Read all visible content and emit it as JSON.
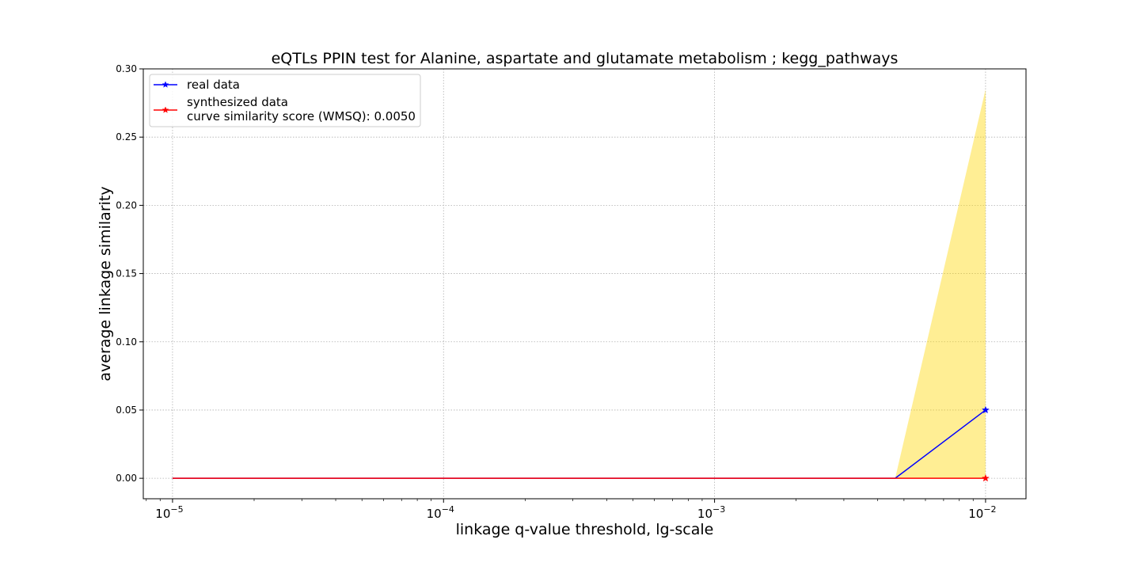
{
  "chart_data": {
    "type": "line",
    "title": "eQTLs PPIN test for Alanine, aspartate and glutamate metabolism ; kegg_pathways",
    "xlabel": "linkage q-value threshold, lg-scale",
    "ylabel": "average linkage similarity",
    "x_scale": "log10",
    "xlim": [
      7.8e-06,
      0.0141
    ],
    "ylim": [
      -0.015,
      0.3
    ],
    "x_ticks": [
      {
        "value": 1e-05,
        "base": "10",
        "exp": "−5"
      },
      {
        "value": 0.0001,
        "base": "10",
        "exp": "−4"
      },
      {
        "value": 0.001,
        "base": "10",
        "exp": "−3"
      },
      {
        "value": 0.01,
        "base": "10",
        "exp": "−2"
      }
    ],
    "y_ticks": [
      {
        "value": 0.0,
        "label": "0.00"
      },
      {
        "value": 0.05,
        "label": "0.05"
      },
      {
        "value": 0.1,
        "label": "0.10"
      },
      {
        "value": 0.15,
        "label": "0.15"
      },
      {
        "value": 0.2,
        "label": "0.20"
      },
      {
        "value": 0.25,
        "label": "0.25"
      },
      {
        "value": 0.3,
        "label": "0.30"
      }
    ],
    "grid": true,
    "legend_position": "top-left",
    "series": [
      {
        "name": "real data",
        "color": "#0000ff",
        "marker": "star",
        "x": [
          1e-05,
          0.00464,
          0.01
        ],
        "y": [
          0.0,
          0.0,
          0.05
        ],
        "marker_x": [
          0.01
        ],
        "marker_y": [
          0.05
        ]
      },
      {
        "name": "synthesized data",
        "color": "#ff0000",
        "marker": "star",
        "x": [
          1e-05,
          0.00464,
          0.01
        ],
        "y": [
          0.0,
          0.0,
          0.0
        ],
        "marker_x": [
          0.01
        ],
        "marker_y": [
          0.0
        ]
      }
    ],
    "band": {
      "color": "#ffd700",
      "opacity": 0.42,
      "x": [
        0.00464,
        0.01
      ],
      "lower": [
        0.0,
        0.0
      ],
      "upper": [
        0.0,
        0.285
      ]
    },
    "legend_note": "curve similarity score (WMSQ): 0.0050"
  }
}
